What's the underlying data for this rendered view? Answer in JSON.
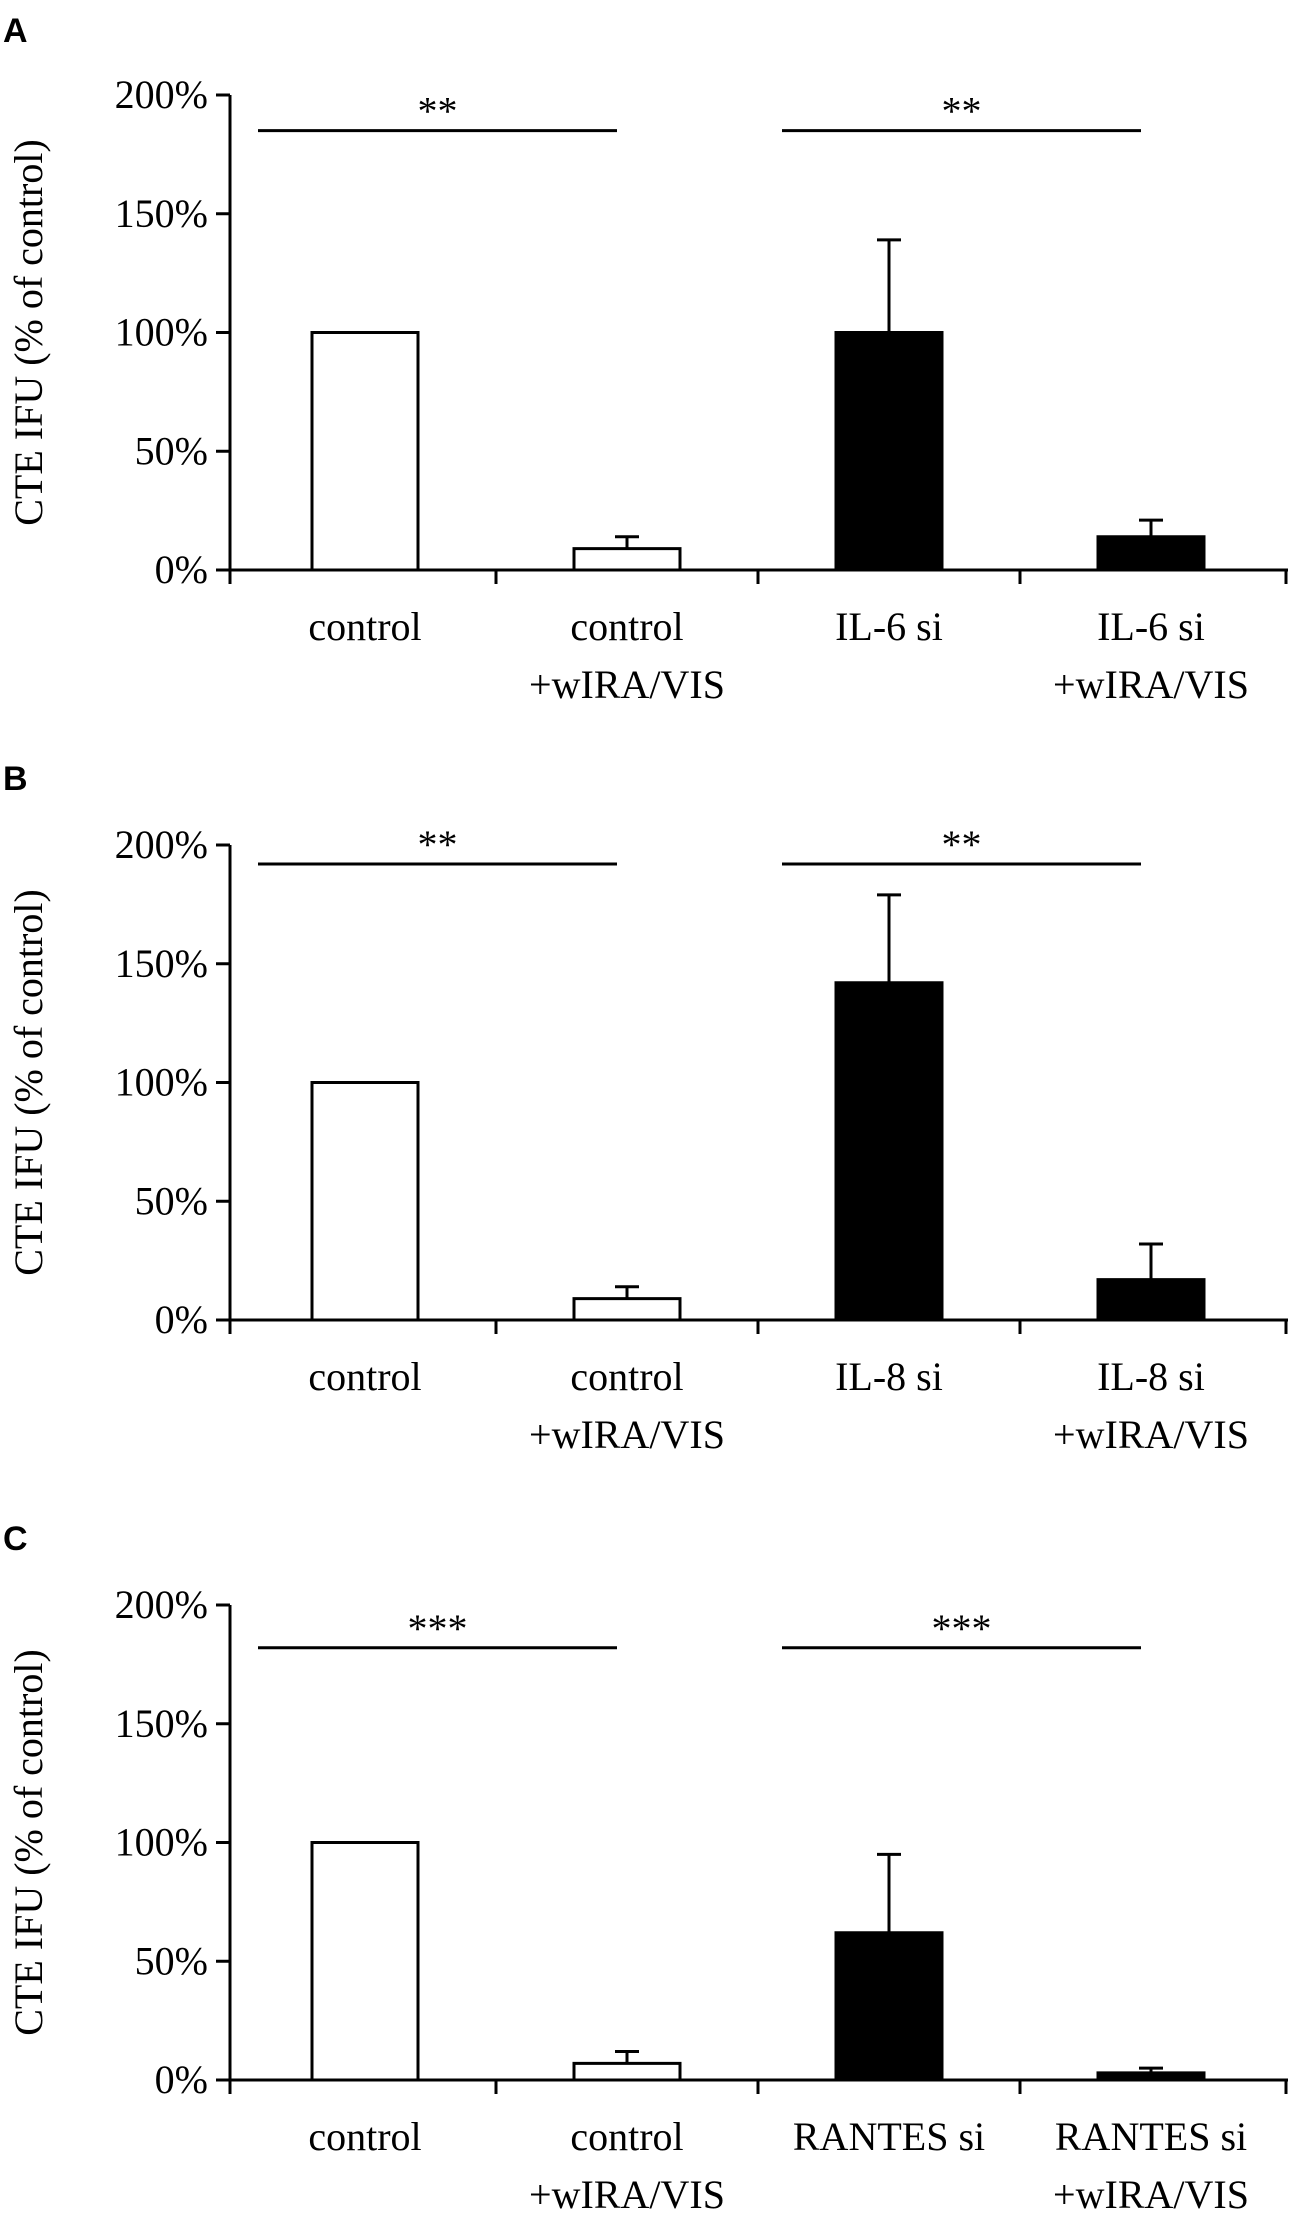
{
  "figure": {
    "background": "#ffffff",
    "colors": {
      "open_bar_fill": "#ffffff",
      "filled_bar_fill": "#000000",
      "stroke": "#000000"
    }
  },
  "chart_data": [
    {
      "type": "bar",
      "panel": "A",
      "ylabel": "CTE IFU (% of control)",
      "xlabel": "",
      "ylim": [
        0,
        200
      ],
      "y_unit": "%",
      "yticks": [
        0,
        50,
        100,
        150,
        200
      ],
      "ytick_labels": [
        "0%",
        "50%",
        "100%",
        "150%",
        "200%"
      ],
      "grid": false,
      "categories": [
        [
          "control"
        ],
        [
          "control",
          "+wIRA/VIS"
        ],
        [
          "IL-6 si"
        ],
        [
          "IL-6 si",
          "+wIRA/VIS"
        ]
      ],
      "values": [
        100,
        9,
        100,
        14
      ],
      "error": [
        0,
        5,
        39,
        7
      ],
      "bar_style": [
        "open",
        "open",
        "filled",
        "filled"
      ],
      "significance": [
        {
          "from": 0,
          "to": 1,
          "label": "**",
          "y": 185
        },
        {
          "from": 2,
          "to": 3,
          "label": "**",
          "y": 185
        }
      ]
    },
    {
      "type": "bar",
      "panel": "B",
      "ylabel": "CTE IFU (% of control)",
      "xlabel": "",
      "ylim": [
        0,
        200
      ],
      "y_unit": "%",
      "yticks": [
        0,
        50,
        100,
        150,
        200
      ],
      "ytick_labels": [
        "0%",
        "50%",
        "100%",
        "150%",
        "200%"
      ],
      "grid": false,
      "categories": [
        [
          "control"
        ],
        [
          "control",
          "+wIRA/VIS"
        ],
        [
          "IL-8 si"
        ],
        [
          "IL-8 si",
          "+wIRA/VIS"
        ]
      ],
      "values": [
        100,
        9,
        142,
        17
      ],
      "error": [
        0,
        5,
        37,
        15
      ],
      "bar_style": [
        "open",
        "open",
        "filled",
        "filled"
      ],
      "significance": [
        {
          "from": 0,
          "to": 1,
          "label": "**",
          "y": 192
        },
        {
          "from": 2,
          "to": 3,
          "label": "**",
          "y": 192
        }
      ]
    },
    {
      "type": "bar",
      "panel": "C",
      "ylabel": "CTE IFU (% of control)",
      "xlabel": "",
      "ylim": [
        0,
        200
      ],
      "y_unit": "%",
      "yticks": [
        0,
        50,
        100,
        150,
        200
      ],
      "ytick_labels": [
        "0%",
        "50%",
        "100%",
        "150%",
        "200%"
      ],
      "grid": false,
      "categories": [
        [
          "control"
        ],
        [
          "control",
          "+wIRA/VIS"
        ],
        [
          "RANTES si"
        ],
        [
          "RANTES si",
          "+wIRA/VIS"
        ]
      ],
      "values": [
        100,
        7,
        62,
        3
      ],
      "error": [
        0,
        5,
        33,
        2
      ],
      "bar_style": [
        "open",
        "open",
        "filled",
        "filled"
      ],
      "significance": [
        {
          "from": 0,
          "to": 1,
          "label": "***",
          "y": 182
        },
        {
          "from": 2,
          "to": 3,
          "label": "***",
          "y": 182
        }
      ]
    }
  ]
}
